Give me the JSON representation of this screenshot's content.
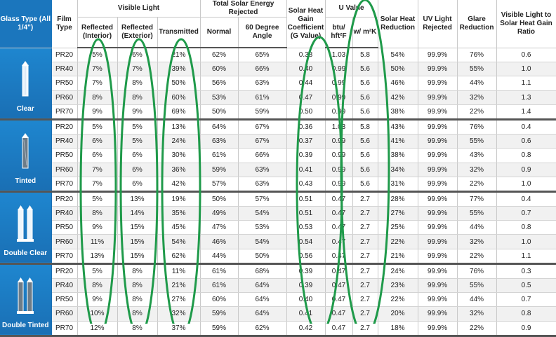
{
  "headers": {
    "glass_type": "Glass Type (All 1/4\")",
    "film_type": "Film Type",
    "visible_light": "Visible Light",
    "vl_reflected_interior": "Reflected (Interior)",
    "vl_reflected_exterior": "Reflected (Exterior)",
    "vl_transmitted": "Transmitted",
    "tser": "Total Solar Energy Rejected",
    "tser_normal": "Normal",
    "tser_60": "60 Degree Angle",
    "shgc": "Solar Heat Gain Coefficient (G Value)",
    "u_value": "U Value",
    "u_btu": "btu/ hft²F",
    "u_w": "w/ m²K",
    "solar_heat_reduction": "Solar Heat Reduction",
    "uv_rejected": "UV Light Rejected",
    "glare_reduction": "Glare Reduction",
    "vl_shg_ratio": "Visible Light to Solar Heat Gain Ratio"
  },
  "groups": [
    {
      "label": "Clear",
      "icon": "single-clear-pane-icon",
      "rows": [
        [
          "PR20",
          "5%",
          "6%",
          "21%",
          "62%",
          "65%",
          "0.38",
          "1.03",
          "5.8",
          "54%",
          "99.9%",
          "76%",
          "0.6"
        ],
        [
          "PR40",
          "7%",
          "7%",
          "39%",
          "60%",
          "66%",
          "0.40",
          "0.99",
          "5.6",
          "50%",
          "99.9%",
          "55%",
          "1.0"
        ],
        [
          "PR50",
          "7%",
          "8%",
          "50%",
          "56%",
          "63%",
          "0.44",
          "0.99",
          "5.6",
          "46%",
          "99.9%",
          "44%",
          "1.1"
        ],
        [
          "PR60",
          "8%",
          "8%",
          "60%",
          "53%",
          "61%",
          "0.47",
          "0.99",
          "5.6",
          "42%",
          "99.9%",
          "32%",
          "1.3"
        ],
        [
          "PR70",
          "9%",
          "9%",
          "69%",
          "50%",
          "59%",
          "0.50",
          "0.99",
          "5.6",
          "38%",
          "99.9%",
          "22%",
          "1.4"
        ]
      ]
    },
    {
      "label": "Tinted",
      "icon": "single-tinted-pane-icon",
      "rows": [
        [
          "PR20",
          "5%",
          "5%",
          "13%",
          "64%",
          "67%",
          "0.36",
          "1.03",
          "5.8",
          "43%",
          "99.9%",
          "76%",
          "0.4"
        ],
        [
          "PR40",
          "6%",
          "5%",
          "24%",
          "63%",
          "67%",
          "0.37",
          "0.99",
          "5.6",
          "41%",
          "99.9%",
          "55%",
          "0.6"
        ],
        [
          "PR50",
          "6%",
          "6%",
          "30%",
          "61%",
          "66%",
          "0.39",
          "0.99",
          "5.6",
          "38%",
          "99.9%",
          "43%",
          "0.8"
        ],
        [
          "PR60",
          "7%",
          "6%",
          "36%",
          "59%",
          "63%",
          "0.41",
          "0.99",
          "5.6",
          "34%",
          "99.9%",
          "32%",
          "0.9"
        ],
        [
          "PR70",
          "7%",
          "6%",
          "42%",
          "57%",
          "63%",
          "0.43",
          "0.99",
          "5.6",
          "31%",
          "99.9%",
          "22%",
          "1.0"
        ]
      ]
    },
    {
      "label": "Double Clear",
      "icon": "double-clear-pane-icon",
      "rows": [
        [
          "PR20",
          "5%",
          "13%",
          "19%",
          "50%",
          "57%",
          "0.51",
          "0.47",
          "2.7",
          "28%",
          "99.9%",
          "77%",
          "0.4"
        ],
        [
          "PR40",
          "8%",
          "14%",
          "35%",
          "49%",
          "54%",
          "0.51",
          "0.47",
          "2.7",
          "27%",
          "99.9%",
          "55%",
          "0.7"
        ],
        [
          "PR50",
          "9%",
          "15%",
          "45%",
          "47%",
          "53%",
          "0.53",
          "0.47",
          "2.7",
          "25%",
          "99.9%",
          "44%",
          "0.8"
        ],
        [
          "PR60",
          "11%",
          "15%",
          "54%",
          "46%",
          "54%",
          "0.54",
          "0.47",
          "2.7",
          "22%",
          "99.9%",
          "32%",
          "1.0"
        ],
        [
          "PR70",
          "13%",
          "15%",
          "62%",
          "44%",
          "50%",
          "0.56",
          "0.47",
          "2.7",
          "21%",
          "99.9%",
          "22%",
          "1.1"
        ]
      ]
    },
    {
      "label": "Double Tinted",
      "icon": "double-tinted-pane-icon",
      "rows": [
        [
          "PR20",
          "5%",
          "8%",
          "11%",
          "61%",
          "68%",
          "0.39",
          "0.47",
          "2.7",
          "24%",
          "99.9%",
          "76%",
          "0.3"
        ],
        [
          "PR40",
          "8%",
          "8%",
          "21%",
          "61%",
          "64%",
          "0.39",
          "0.47",
          "2.7",
          "23%",
          "99.9%",
          "55%",
          "0.5"
        ],
        [
          "PR50",
          "9%",
          "8%",
          "27%",
          "60%",
          "64%",
          "0.40",
          "0.47",
          "2.7",
          "22%",
          "99.9%",
          "44%",
          "0.7"
        ],
        [
          "PR60",
          "10%",
          "8%",
          "32%",
          "59%",
          "64%",
          "0.41",
          "0.47",
          "2.7",
          "20%",
          "99.9%",
          "32%",
          "0.8"
        ],
        [
          "PR70",
          "12%",
          "8%",
          "37%",
          "59%",
          "62%",
          "0.42",
          "0.47",
          "2.7",
          "18%",
          "99.9%",
          "22%",
          "0.9"
        ]
      ]
    }
  ],
  "colors": {
    "glass_column": "#1b76bd",
    "highlight_ovals": "#1f9a4a"
  }
}
